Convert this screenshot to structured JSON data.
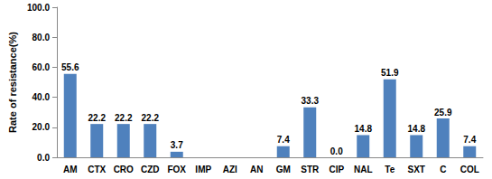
{
  "chart_data": {
    "type": "bar",
    "y_label": "Rate of resistance(%)",
    "categories": [
      "AM",
      "CTX",
      "CRO",
      "CZD",
      "FOX",
      "IMP",
      "AZI",
      "AN",
      "GM",
      "STR",
      "CIP",
      "NAL",
      "Te",
      "SXT",
      "C",
      "COL"
    ],
    "values": [
      55.6,
      22.2,
      22.2,
      22.2,
      3.7,
      null,
      null,
      null,
      7.4,
      33.3,
      0,
      14.8,
      51.9,
      14.8,
      25.9,
      7.4
    ],
    "value_labels": [
      "55.6",
      "22.2",
      "22.2",
      "22.2",
      "3.7",
      null,
      null,
      null,
      "7.4",
      "33.3",
      "0.0",
      "14.8",
      "51.9",
      "14.8",
      "25.9",
      "7.4"
    ],
    "color": "#4f81bd",
    "ylim": [
      0,
      100
    ],
    "yticks": [
      {
        "value": 0,
        "label": "0.0"
      },
      {
        "value": 20,
        "label": "20.0"
      },
      {
        "value": 40,
        "label": "40.0"
      },
      {
        "value": 60,
        "label": "60.0"
      },
      {
        "value": 80,
        "label": "80.0"
      },
      {
        "value": 100,
        "label": "100.0"
      }
    ],
    "grid": false,
    "data_labels": true
  }
}
